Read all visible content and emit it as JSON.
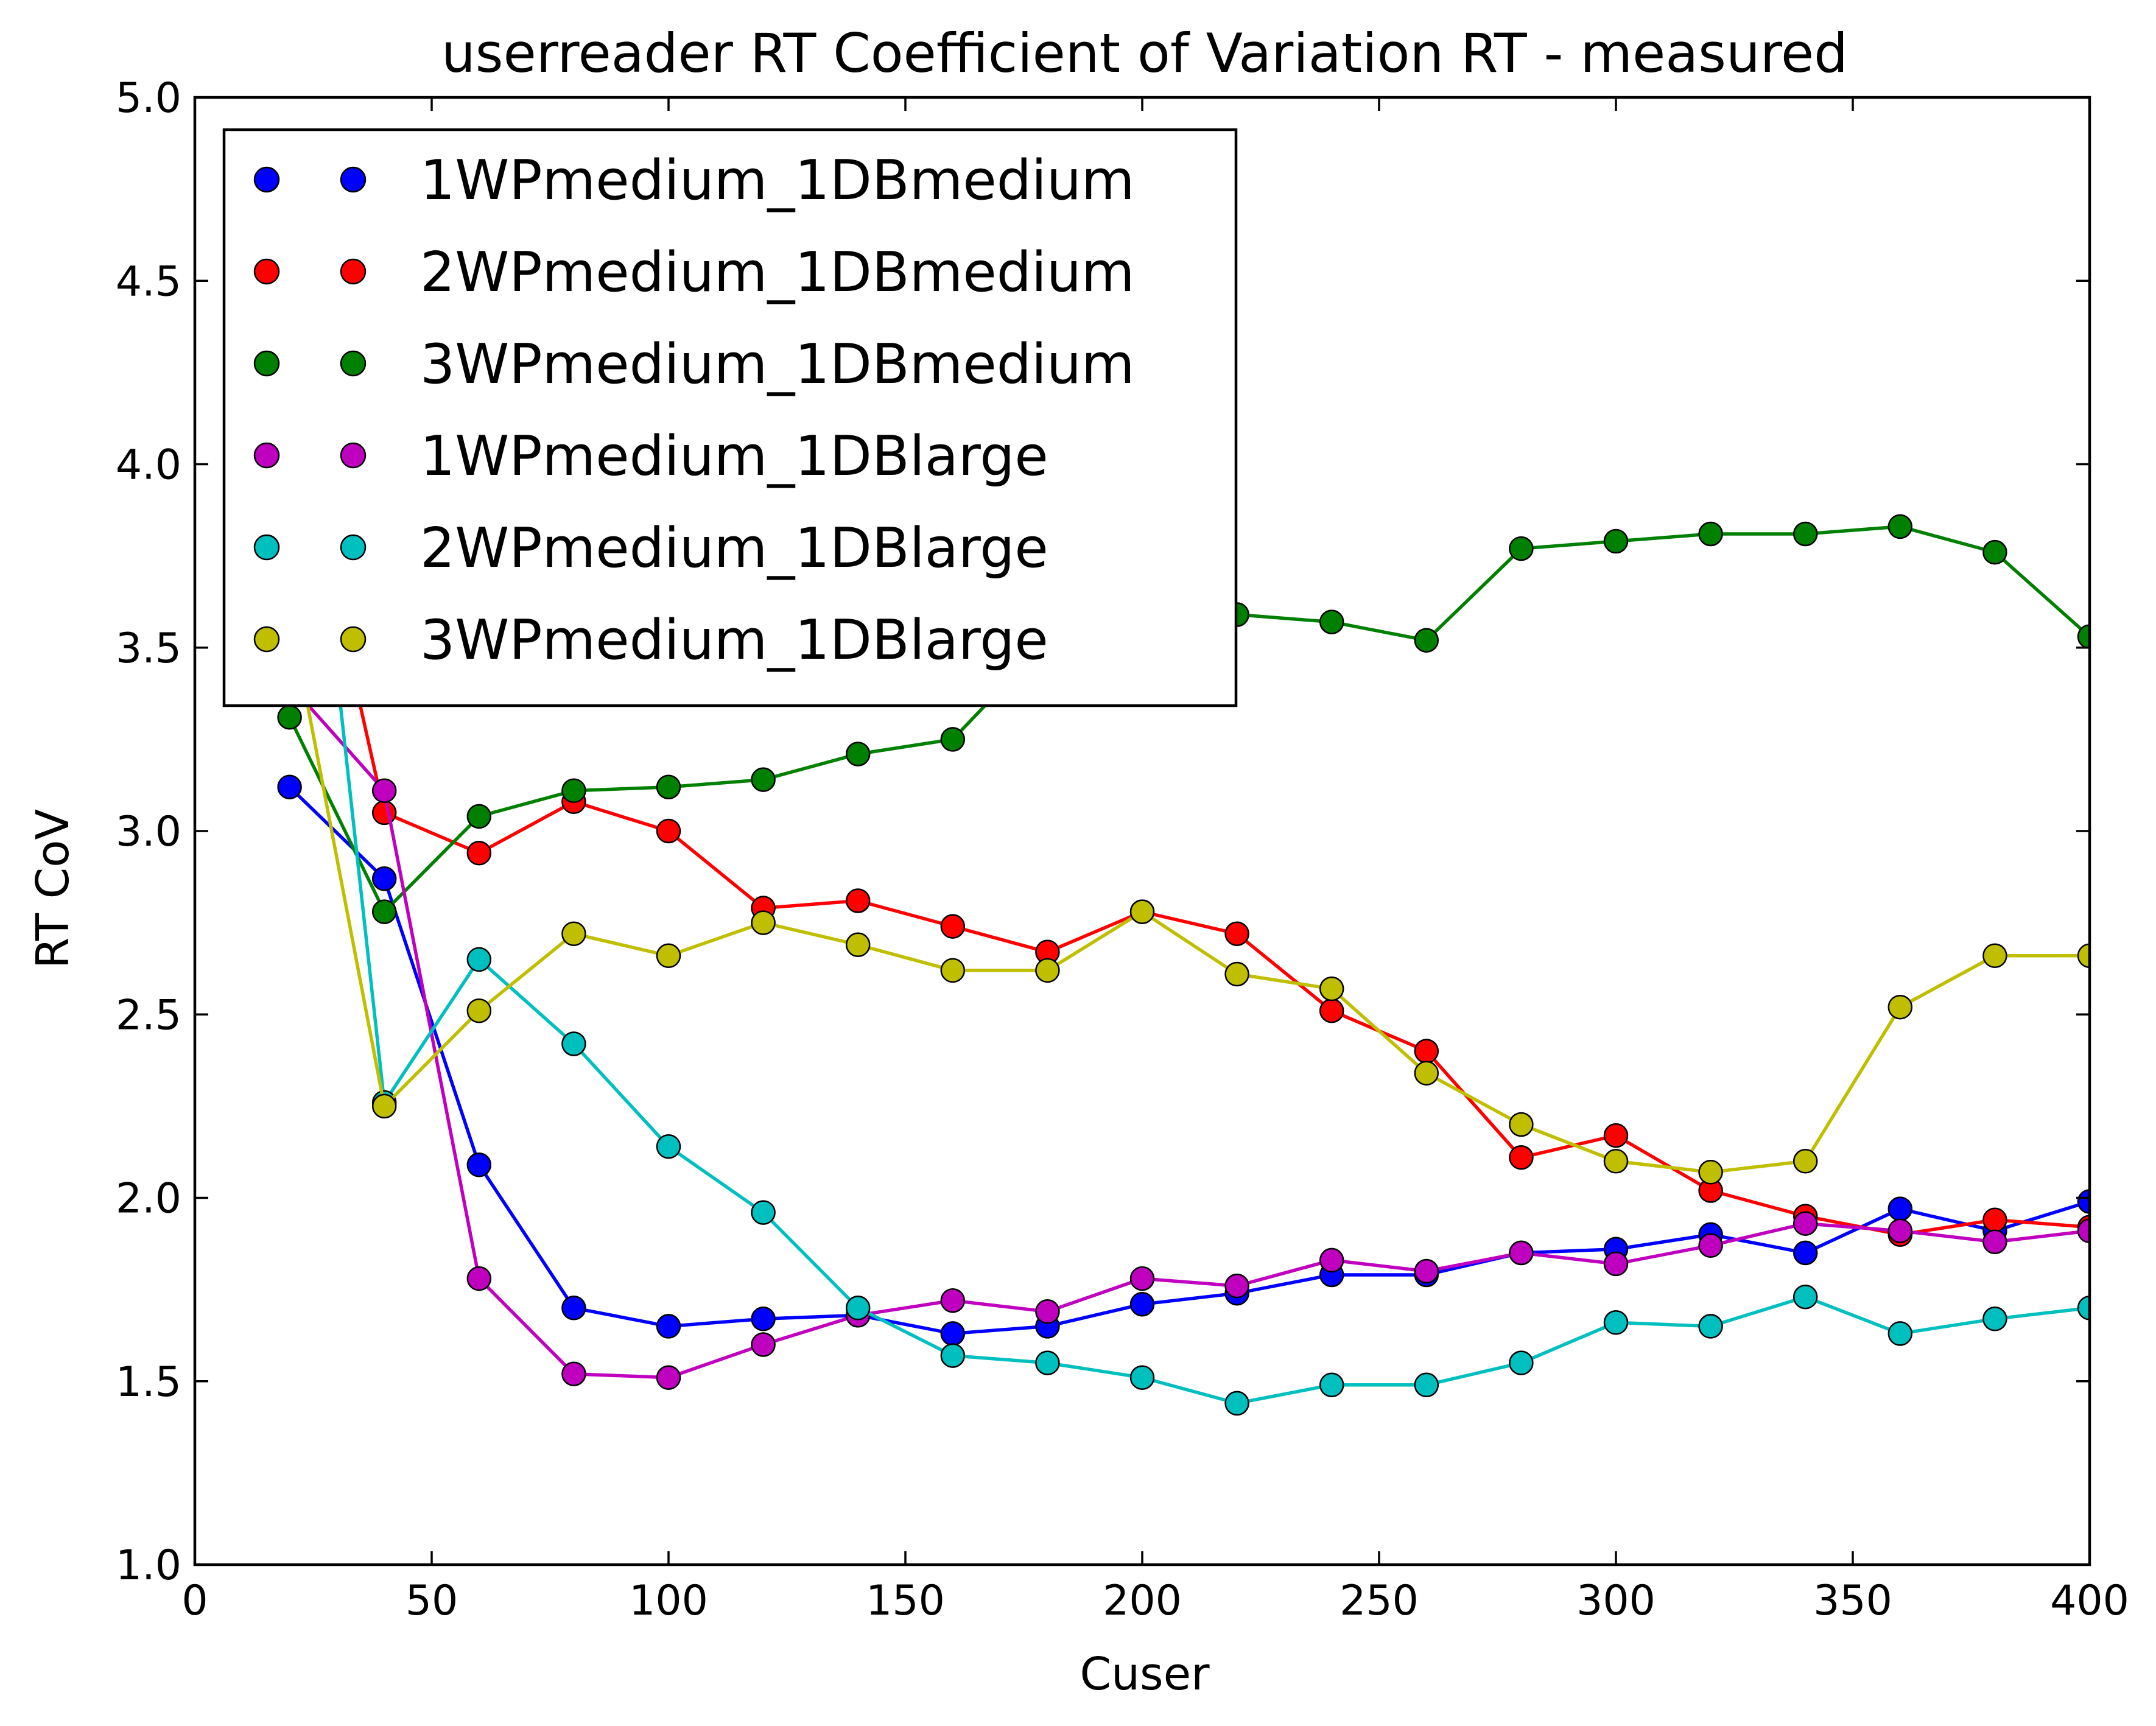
{
  "chart_data": {
    "type": "line",
    "title": "userreader  RT Coefficient of Variation RT - measured",
    "xlabel": "Cuser",
    "ylabel": "RT CoV",
    "xlim": [
      0,
      400
    ],
    "ylim": [
      1.0,
      5.0
    ],
    "xticks": [
      "0",
      "50",
      "100",
      "150",
      "200",
      "250",
      "300",
      "350",
      "400"
    ],
    "yticks": [
      "1.0",
      "1.5",
      "2.0",
      "2.5",
      "3.0",
      "3.5",
      "4.0",
      "4.5",
      "5.0"
    ],
    "grid": false,
    "legend_position": "top-left",
    "x": [
      20,
      40,
      60,
      80,
      100,
      120,
      140,
      160,
      180,
      200,
      220,
      240,
      260,
      280,
      300,
      320,
      340,
      360,
      380,
      400
    ],
    "series": [
      {
        "name": "1WPmedium_1DBmedium",
        "color": "#0000ff",
        "values": [
          3.12,
          2.87,
          2.09,
          1.7,
          1.65,
          1.67,
          1.68,
          1.63,
          1.65,
          1.71,
          1.74,
          1.79,
          1.79,
          1.85,
          1.86,
          1.9,
          1.85,
          1.97,
          1.91,
          1.99
        ]
      },
      {
        "name": "2WPmedium_1DBmedium",
        "color": "#ff0000",
        "values": [
          4.2,
          3.05,
          2.94,
          3.08,
          3.0,
          2.79,
          2.81,
          2.74,
          2.67,
          2.78,
          2.72,
          2.51,
          2.4,
          2.11,
          2.17,
          2.02,
          1.95,
          1.9,
          1.94,
          1.92
        ]
      },
      {
        "name": "3WPmedium_1DBmedium",
        "color": "#008000",
        "values": [
          3.31,
          2.78,
          3.04,
          3.11,
          3.12,
          3.14,
          3.21,
          3.25,
          3.52,
          3.57,
          3.59,
          3.57,
          3.52,
          3.77,
          3.79,
          3.81,
          3.81,
          3.83,
          3.76,
          3.53
        ]
      },
      {
        "name": "1WPmedium_1DBlarge",
        "color": "#bf00bf",
        "values": [
          3.4,
          3.11,
          1.78,
          1.52,
          1.51,
          1.6,
          1.68,
          1.72,
          1.69,
          1.78,
          1.76,
          1.83,
          1.8,
          1.85,
          1.82,
          1.87,
          1.93,
          1.91,
          1.88,
          1.91
        ]
      },
      {
        "name": "2WPmedium_1DBlarge",
        "color": "#00bfbf",
        "values": [
          4.6,
          2.26,
          2.65,
          2.42,
          2.14,
          1.96,
          1.7,
          1.57,
          1.55,
          1.51,
          1.44,
          1.49,
          1.49,
          1.55,
          1.66,
          1.65,
          1.73,
          1.63,
          1.67,
          1.7
        ]
      },
      {
        "name": "3WPmedium_1DBlarge",
        "color": "#bfbf00",
        "values": [
          3.6,
          2.25,
          2.51,
          2.72,
          2.66,
          2.75,
          2.69,
          2.62,
          2.62,
          2.78,
          2.61,
          2.57,
          2.34,
          2.2,
          2.1,
          2.07,
          2.1,
          2.52,
          2.66,
          2.66
        ]
      }
    ]
  }
}
